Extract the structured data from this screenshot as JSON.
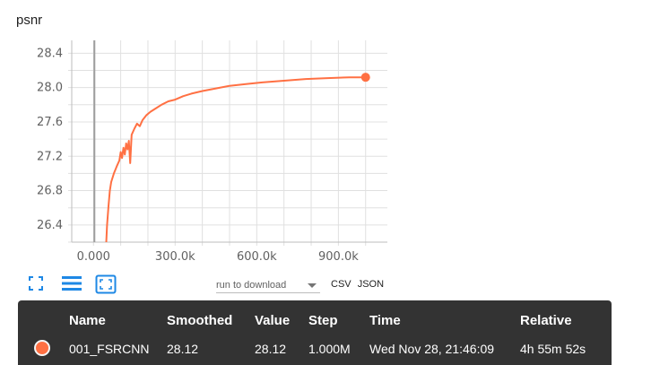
{
  "chart_data": {
    "type": "line",
    "title": "psnr",
    "xlabel": "",
    "ylabel": "",
    "xlim": [
      -80000,
      1080000
    ],
    "ylim": [
      26.2,
      28.55
    ],
    "x_ticks": [
      {
        "value": 0,
        "label": "0.000"
      },
      {
        "value": 300000,
        "label": "300.0k"
      },
      {
        "value": 600000,
        "label": "600.0k"
      },
      {
        "value": 900000,
        "label": "900.0k"
      }
    ],
    "y_ticks": [
      {
        "value": 26.4,
        "label": "26.4"
      },
      {
        "value": 26.8,
        "label": "26.8"
      },
      {
        "value": 27.2,
        "label": "27.2"
      },
      {
        "value": 27.6,
        "label": "27.6"
      },
      {
        "value": 28.0,
        "label": "28.0"
      },
      {
        "value": 28.4,
        "label": "28.4"
      }
    ],
    "grid": true,
    "color": "#ff7043",
    "series": [
      {
        "name": "001_FSRCNN",
        "points": [
          [
            47000,
            26.2
          ],
          [
            50000,
            26.4
          ],
          [
            55000,
            26.62
          ],
          [
            60000,
            26.8
          ],
          [
            65000,
            26.9
          ],
          [
            75000,
            27.0
          ],
          [
            85000,
            27.08
          ],
          [
            95000,
            27.15
          ],
          [
            100000,
            27.25
          ],
          [
            105000,
            27.18
          ],
          [
            110000,
            27.3
          ],
          [
            115000,
            27.22
          ],
          [
            120000,
            27.35
          ],
          [
            125000,
            27.28
          ],
          [
            130000,
            27.38
          ],
          [
            135000,
            27.12
          ],
          [
            140000,
            27.45
          ],
          [
            150000,
            27.52
          ],
          [
            160000,
            27.58
          ],
          [
            170000,
            27.55
          ],
          [
            180000,
            27.62
          ],
          [
            195000,
            27.68
          ],
          [
            210000,
            27.72
          ],
          [
            230000,
            27.76
          ],
          [
            250000,
            27.8
          ],
          [
            275000,
            27.84
          ],
          [
            300000,
            27.86
          ],
          [
            330000,
            27.9
          ],
          [
            360000,
            27.93
          ],
          [
            400000,
            27.96
          ],
          [
            450000,
            27.99
          ],
          [
            500000,
            28.02
          ],
          [
            560000,
            28.04
          ],
          [
            620000,
            28.06
          ],
          [
            700000,
            28.08
          ],
          [
            780000,
            28.1
          ],
          [
            860000,
            28.11
          ],
          [
            940000,
            28.12
          ],
          [
            1000000,
            28.12
          ]
        ]
      }
    ],
    "cursor_x": 0
  },
  "toolbar": {
    "fullscreen_icon": "fullscreen-icon",
    "data_selection_icon": "lines-icon",
    "fit_domain_icon": "fit-domain-icon"
  },
  "download": {
    "placeholder": "run to download",
    "csv_label": "CSV",
    "json_label": "JSON"
  },
  "tooltip": {
    "headers": {
      "name": "Name",
      "smoothed": "Smoothed",
      "value": "Value",
      "step": "Step",
      "time": "Time",
      "relative": "Relative"
    },
    "row": {
      "name": "001_FSRCNN",
      "smoothed": "28.12",
      "value": "28.12",
      "step": "1.000M",
      "time": "Wed Nov 28, 21:46:09",
      "relative": "4h 55m 52s",
      "color": "#ff7043"
    }
  }
}
